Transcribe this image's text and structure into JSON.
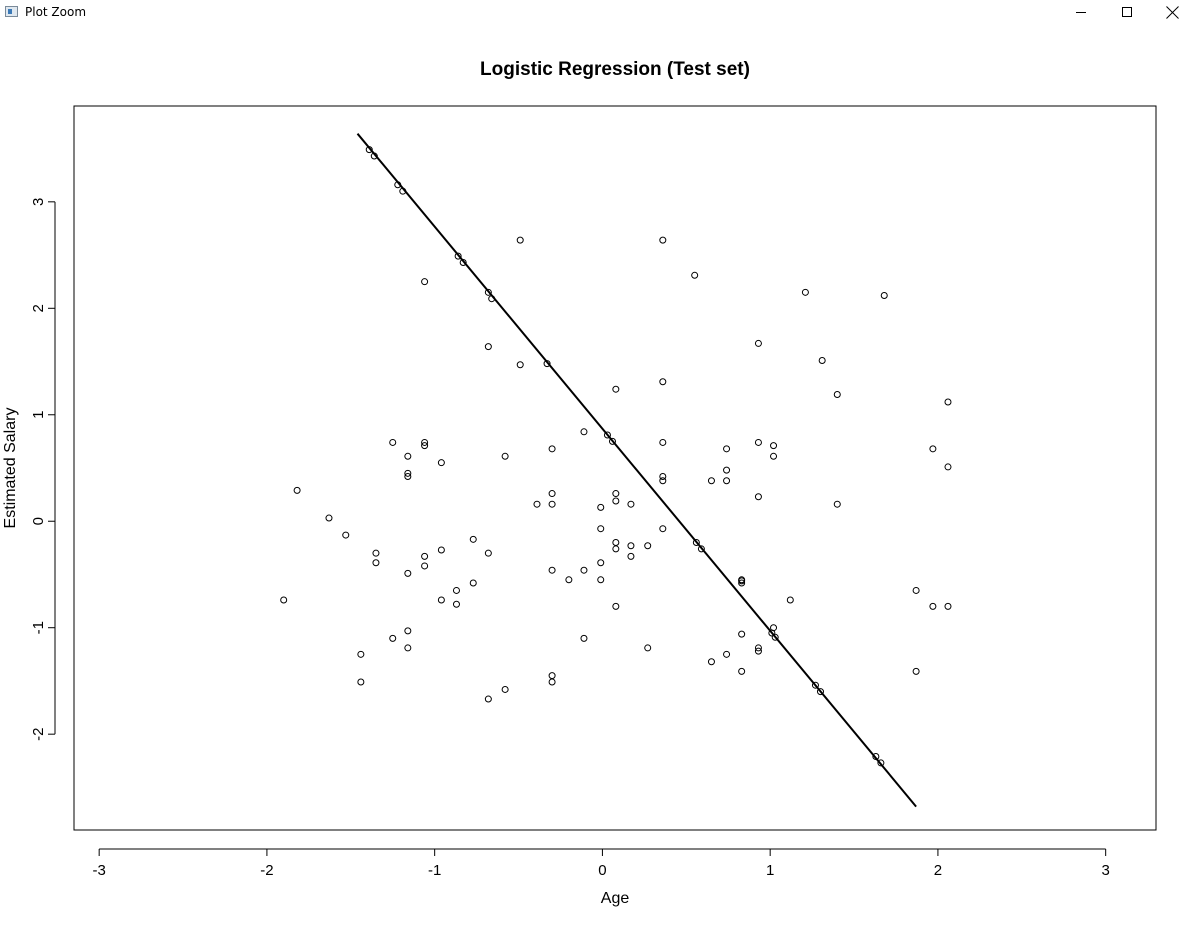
{
  "window": {
    "title": "Plot Zoom",
    "icon": "plot-window-icon",
    "controls": [
      "minimize-icon",
      "maximize-icon",
      "close-icon"
    ]
  },
  "chart_data": {
    "type": "scatter",
    "title": "Logistic Regression (Test set)",
    "xlabel": "Age",
    "ylabel": "Estimated Salary",
    "xlim": [
      -3.15,
      3.3
    ],
    "ylim": [
      -2.9,
      3.9
    ],
    "xticks": [
      -3,
      -2,
      -1,
      0,
      1,
      2,
      3
    ],
    "yticks": [
      -2,
      -1,
      0,
      1,
      2,
      3
    ],
    "xtick_labels": [
      "-3",
      "-2",
      "-1",
      "0",
      "1",
      "2",
      "3"
    ],
    "ytick_labels": [
      "-2",
      "-1",
      "0",
      "1",
      "2",
      "3"
    ],
    "grid": false,
    "box": true,
    "marker": "open-circle",
    "line": {
      "style": "solid",
      "color": "#000000",
      "x": [
        -1.46,
        1.87
      ],
      "y": [
        3.64,
        -2.68
      ]
    },
    "points": [
      [
        -1.9,
        -0.74
      ],
      [
        -1.82,
        0.29
      ],
      [
        -1.63,
        0.03
      ],
      [
        -1.53,
        -0.13
      ],
      [
        -1.44,
        -1.25
      ],
      [
        -1.44,
        -1.51
      ],
      [
        -1.35,
        -0.3
      ],
      [
        -1.35,
        -0.39
      ],
      [
        -1.25,
        0.74
      ],
      [
        -1.25,
        -1.1
      ],
      [
        -1.16,
        0.61
      ],
      [
        -1.16,
        0.42
      ],
      [
        -1.16,
        0.45
      ],
      [
        -1.16,
        -0.49
      ],
      [
        -1.16,
        -1.03
      ],
      [
        -1.16,
        -1.19
      ],
      [
        -1.06,
        2.25
      ],
      [
        -1.06,
        0.74
      ],
      [
        -1.06,
        0.71
      ],
      [
        -1.06,
        -0.33
      ],
      [
        -1.06,
        -0.42
      ],
      [
        -0.96,
        0.55
      ],
      [
        -0.96,
        -0.27
      ],
      [
        -0.96,
        -0.74
      ],
      [
        -0.87,
        -0.65
      ],
      [
        -0.87,
        -0.78
      ],
      [
        -0.77,
        -0.17
      ],
      [
        -0.77,
        -0.58
      ],
      [
        -0.68,
        1.64
      ],
      [
        -0.68,
        -0.3
      ],
      [
        -0.68,
        -1.67
      ],
      [
        -0.58,
        0.61
      ],
      [
        -0.58,
        -1.58
      ],
      [
        -0.49,
        2.64
      ],
      [
        -0.49,
        1.47
      ],
      [
        -0.39,
        0.16
      ],
      [
        -0.3,
        0.68
      ],
      [
        -0.3,
        0.26
      ],
      [
        -0.3,
        0.16
      ],
      [
        -0.3,
        -0.46
      ],
      [
        -0.3,
        -1.45
      ],
      [
        -0.3,
        -1.51
      ],
      [
        -0.2,
        -0.55
      ],
      [
        -0.11,
        0.84
      ],
      [
        -0.11,
        -0.46
      ],
      [
        -0.11,
        -1.1
      ],
      [
        -0.01,
        0.13
      ],
      [
        -0.01,
        -0.07
      ],
      [
        -0.01,
        -0.39
      ],
      [
        -0.01,
        -0.55
      ],
      [
        0.08,
        1.24
      ],
      [
        0.08,
        0.26
      ],
      [
        0.08,
        0.19
      ],
      [
        0.08,
        -0.2
      ],
      [
        0.08,
        -0.26
      ],
      [
        0.08,
        -0.8
      ],
      [
        0.17,
        0.16
      ],
      [
        0.17,
        -0.23
      ],
      [
        0.17,
        -0.33
      ],
      [
        0.27,
        -0.23
      ],
      [
        0.27,
        -1.19
      ],
      [
        0.36,
        2.64
      ],
      [
        0.36,
        1.31
      ],
      [
        0.36,
        0.74
      ],
      [
        0.36,
        0.42
      ],
      [
        0.36,
        0.38
      ],
      [
        0.36,
        -0.07
      ],
      [
        0.55,
        2.31
      ],
      [
        0.65,
        0.38
      ],
      [
        0.65,
        -1.32
      ],
      [
        0.74,
        0.68
      ],
      [
        0.74,
        0.48
      ],
      [
        0.74,
        0.38
      ],
      [
        0.74,
        -1.25
      ],
      [
        0.83,
        -0.55
      ],
      [
        0.83,
        -0.58
      ],
      [
        0.83,
        -1.06
      ],
      [
        0.83,
        -1.41
      ],
      [
        0.93,
        1.67
      ],
      [
        0.93,
        0.74
      ],
      [
        0.93,
        0.23
      ],
      [
        0.93,
        -1.19
      ],
      [
        0.93,
        -1.22
      ],
      [
        1.02,
        0.71
      ],
      [
        1.02,
        0.61
      ],
      [
        1.02,
        -1.0
      ],
      [
        1.12,
        -0.74
      ],
      [
        1.21,
        2.15
      ],
      [
        1.31,
        1.51
      ],
      [
        1.4,
        1.19
      ],
      [
        1.4,
        0.16
      ],
      [
        1.68,
        2.12
      ],
      [
        1.87,
        -0.65
      ],
      [
        1.87,
        -1.41
      ],
      [
        1.97,
        0.68
      ],
      [
        1.97,
        -0.8
      ],
      [
        2.06,
        1.12
      ],
      [
        2.06,
        0.51
      ],
      [
        2.06,
        -0.8
      ],
      [
        -1.39,
        3.49
      ],
      [
        -1.36,
        3.43
      ],
      [
        -1.22,
        3.16
      ],
      [
        -1.19,
        3.1
      ],
      [
        -0.86,
        2.49
      ],
      [
        -0.83,
        2.43
      ],
      [
        -0.68,
        2.15
      ],
      [
        -0.66,
        2.09
      ],
      [
        -0.33,
        1.48
      ],
      [
        0.03,
        0.81
      ],
      [
        0.06,
        0.75
      ],
      [
        0.56,
        -0.2
      ],
      [
        0.59,
        -0.26
      ],
      [
        0.83,
        -0.56
      ],
      [
        1.01,
        -1.05
      ],
      [
        1.03,
        -1.09
      ],
      [
        1.27,
        -1.54
      ],
      [
        1.3,
        -1.6
      ],
      [
        1.63,
        -2.21
      ],
      [
        1.66,
        -2.27
      ]
    ]
  }
}
